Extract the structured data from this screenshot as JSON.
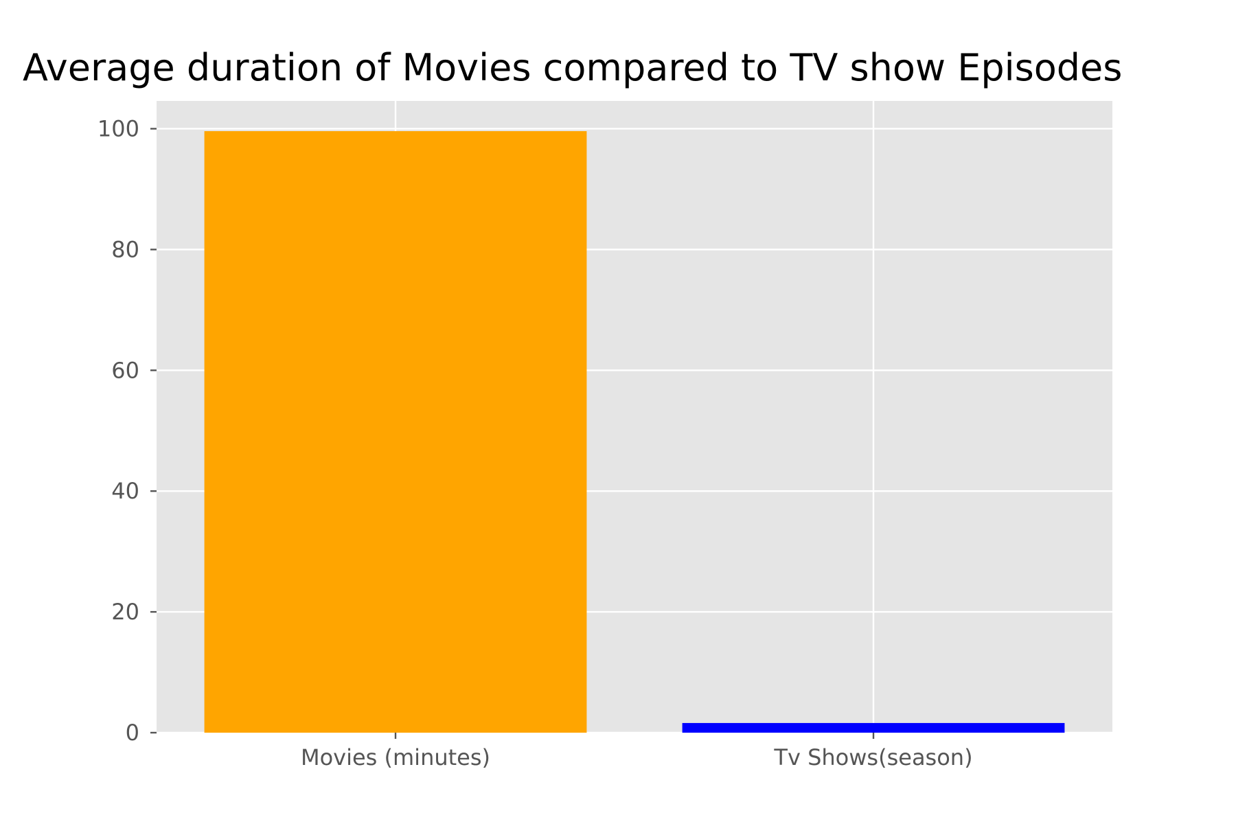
{
  "chart_data": {
    "type": "bar",
    "title": "Average duration of Movies compared to TV show Episodes",
    "xlabel": "",
    "ylabel": "",
    "categories": [
      "Movies (minutes)",
      "Tv Shows(season)"
    ],
    "values": [
      99.6,
      1.6
    ],
    "bar_colors": [
      "#FFA500",
      "#0000FF"
    ],
    "ylim": [
      0,
      104.6
    ],
    "yticks": [
      0,
      20,
      40,
      60,
      80,
      100
    ],
    "grid": true,
    "legend": "none",
    "background_color": "#E5E5E5",
    "grid_color": "#FFFFFF",
    "tick_label_color": "#555555"
  }
}
